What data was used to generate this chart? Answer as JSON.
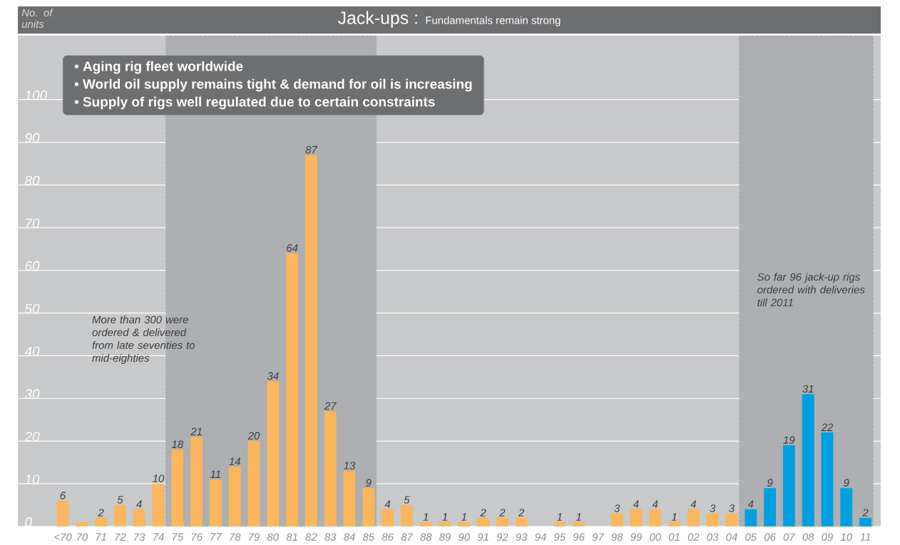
{
  "chart_data": {
    "type": "bar",
    "title": "Jack-ups :",
    "subtitle": "Fundamentals remain strong",
    "ylabel": "No. of units",
    "categories": [
      "<70",
      "70",
      "71",
      "72",
      "73",
      "74",
      "75",
      "76",
      "77",
      "78",
      "79",
      "80",
      "81",
      "82",
      "83",
      "84",
      "85",
      "86",
      "87",
      "88",
      "89",
      "90",
      "91",
      "92",
      "93",
      "94",
      "95",
      "96",
      "97",
      "98",
      "99",
      "00",
      "01",
      "02",
      "03",
      "04",
      "05",
      "06",
      "07",
      "08",
      "09",
      "10",
      "11"
    ],
    "values": [
      6,
      1,
      2,
      5,
      4,
      10,
      18,
      21,
      11,
      14,
      20,
      34,
      64,
      87,
      27,
      13,
      9,
      4,
      5,
      1,
      1,
      1,
      2,
      2,
      2,
      0,
      1,
      1,
      0,
      3,
      4,
      4,
      1,
      4,
      3,
      3,
      4,
      9,
      19,
      31,
      22,
      9,
      2
    ],
    "value_labels": [
      "6",
      null,
      "2",
      "5",
      "4",
      "10",
      "18",
      "21",
      "11",
      "14",
      "20",
      "34",
      "64",
      "87",
      "27",
      "13",
      "9",
      "4",
      "5",
      "1",
      "1",
      "1",
      "2",
      "2",
      "2",
      null,
      "1",
      "1",
      null,
      "3",
      "4",
      "4",
      "1",
      "4",
      "3",
      "3",
      "4",
      "9",
      "19",
      "31",
      "22",
      "9",
      "2"
    ],
    "colors": [
      "#fbb65e",
      "#fbb65e",
      "#fbb65e",
      "#fbb65e",
      "#fbb65e",
      "#fbb65e",
      "#fbb65e",
      "#fbb65e",
      "#fbb65e",
      "#fbb65e",
      "#fbb65e",
      "#fbb65e",
      "#fbb65e",
      "#fbb65e",
      "#fbb65e",
      "#fbb65e",
      "#fbb65e",
      "#fbb65e",
      "#fbb65e",
      "#fbb65e",
      "#fbb65e",
      "#fbb65e",
      "#fbb65e",
      "#fbb65e",
      "#fbb65e",
      "#fbb65e",
      "#fbb65e",
      "#fbb65e",
      "#fbb65e",
      "#fbb65e",
      "#fbb65e",
      "#fbb65e",
      "#fbb65e",
      "#fbb65e",
      "#fbb65e",
      "#fbb65e",
      "#009fe0",
      "#009fe0",
      "#009fe0",
      "#009fe0",
      "#009fe0",
      "#009fe0",
      "#009fe0"
    ],
    "ylim": [
      0,
      115
    ],
    "yticks": [
      0,
      10,
      20,
      30,
      40,
      50,
      60,
      70,
      80,
      90,
      100
    ],
    "grid": "y",
    "bands": [
      {
        "axis": "x",
        "from": "75",
        "to": "85",
        "label": "More than 300 were ordered & delivered from late seventies to mid-eighties",
        "color": "#adafb2"
      },
      {
        "axis": "x",
        "from": "05",
        "to": "11",
        "label": "So far 96 jack-up rigs ordered with deliveries till 2011",
        "color": "#adafb2"
      }
    ],
    "annotations": [
      "• Aging rig fleet worldwide",
      "• World oil supply remains tight & demand for oil is increasing",
      "• Supply of rigs well regulated due to certain constraints"
    ]
  }
}
